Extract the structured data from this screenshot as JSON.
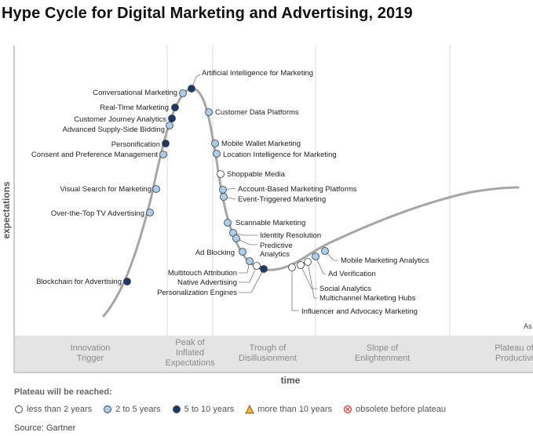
{
  "title": "Hype Cycle for Digital Marketing and Advertising, 2019",
  "chart_data": {
    "type": "scatter",
    "title": "Hype Cycle for Digital Marketing and Advertising, 2019",
    "xlabel": "time",
    "ylabel": "expectations",
    "grid": false,
    "phases": [
      {
        "lines": [
          "Innovation",
          "Trigger"
        ]
      },
      {
        "lines": [
          "Peak of",
          "Inflated",
          "Expectations"
        ]
      },
      {
        "lines": [
          "Trough of",
          "Disillusionment"
        ]
      },
      {
        "lines": [
          "Slope of",
          "Enlightenment"
        ]
      },
      {
        "lines": [
          "Plateau of",
          "Productivi"
        ]
      }
    ],
    "partial_label": "As",
    "technologies": [
      {
        "name": "Blockchain for Advertising",
        "status": "5 to 10 years"
      },
      {
        "name": "Over-the-Top TV Advertising",
        "status": "2 to 5 years"
      },
      {
        "name": "Visual Search for Marketing",
        "status": "2 to 5 years"
      },
      {
        "name": "Consent and Preference Management",
        "status": "2 to 5 years"
      },
      {
        "name": "Personification",
        "status": "5 to 10 years"
      },
      {
        "name": "Advanced Supply-Side Bidding",
        "status": "2 to 5 years"
      },
      {
        "name": "Customer Journey Analytics",
        "status": "5 to 10 years"
      },
      {
        "name": "Real-Time Marketing",
        "status": "5 to 10 years"
      },
      {
        "name": "Conversational Marketing",
        "status": "2 to 5 years"
      },
      {
        "name": "Artificial Intelligence for Marketing",
        "status": "5 to 10 years"
      },
      {
        "name": "Customer Data Platforms",
        "status": "2 to 5 years"
      },
      {
        "name": "Mobile Wallet Marketing",
        "status": "2 to 5 years"
      },
      {
        "name": "Location Intelligence for Marketing",
        "status": "2 to 5 years"
      },
      {
        "name": "Shoppable Media",
        "status": "less than 2 years"
      },
      {
        "name": "Account-Based Marketing Platforms",
        "status": "2 to 5 years"
      },
      {
        "name": "Event-Triggered Marketing",
        "status": "2 to 5 years"
      },
      {
        "name": "Scannable Marketing",
        "status": "2 to 5 years"
      },
      {
        "name": "Identity Resolution",
        "status": "2 to 5 years"
      },
      {
        "name": "Predictive Analytics",
        "status": "2 to 5 years"
      },
      {
        "name": "Ad Blocking",
        "status": "2 to 5 years"
      },
      {
        "name": "Multitouch Attribution",
        "status": "2 to 5 years"
      },
      {
        "name": "Native Advertising",
        "status": "less than 2 years"
      },
      {
        "name": "Personalization Engines",
        "status": "5 to 10 years"
      },
      {
        "name": "Influencer and Advocacy Marketing",
        "status": "less than 2 years"
      },
      {
        "name": "Social Analytics",
        "status": "less than 2 years"
      },
      {
        "name": "Multichannel Marketing Hubs",
        "status": "less than 2 years"
      },
      {
        "name": "Ad Verification",
        "status": "2 to 5 years"
      },
      {
        "name": "Mobile Marketing Analytics",
        "status": "2 to 5 years"
      }
    ]
  },
  "legend": {
    "title": "Plateau will be reached:",
    "items": [
      {
        "label": "less than 2 years",
        "fill": "#ffffff",
        "shape": "circle"
      },
      {
        "label": "2 to 5 years",
        "fill": "#a9cdea",
        "shape": "circle"
      },
      {
        "label": "5 to 10 years",
        "fill": "#1b3a6b",
        "shape": "circle"
      },
      {
        "label": "more than 10 years",
        "fill": "#f2b441",
        "shape": "triangle"
      },
      {
        "label": "obsolete before plateau",
        "fill": "#e0433a",
        "shape": "x-circle"
      }
    ]
  },
  "source": "Source: Gartner",
  "colors": {
    "curve": "#a6a6a6",
    "phase_band": "#e4e4e4",
    "divider": "#d9d9d9",
    "less_than_2": "#ffffff",
    "two_to_five": "#a9cdea",
    "five_to_ten": "#1b3a6b"
  }
}
